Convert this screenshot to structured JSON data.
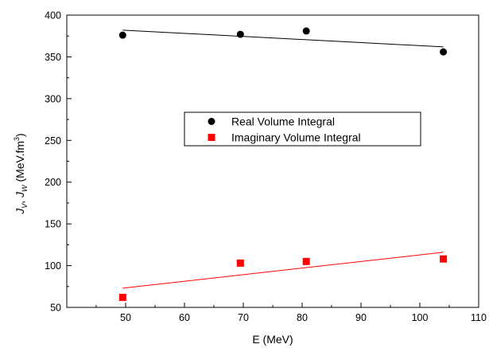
{
  "chart_data": {
    "type": "scatter",
    "xlabel": "E (MeV)",
    "ylabel": {
      "j": "J",
      "v": "V",
      "sep": ", ",
      "w": "W",
      "unit": " (MeV.fm",
      "exp": "3",
      "close": ")"
    },
    "xlim": [
      40,
      110
    ],
    "ylim": [
      50,
      400
    ],
    "xticks": [
      50,
      60,
      70,
      80,
      90,
      100,
      110
    ],
    "yticks": [
      50,
      100,
      150,
      200,
      250,
      300,
      350,
      400
    ],
    "grid": false,
    "legend_position": "center-right",
    "series": [
      {
        "name": "Real Volume Integral",
        "marker": "circle",
        "color": "#000000",
        "x": [
          49.5,
          69.5,
          80.7,
          104.0
        ],
        "y": [
          376,
          377,
          381,
          356
        ],
        "fit": {
          "x": [
            49.5,
            104.0
          ],
          "y": [
            382,
            362
          ]
        }
      },
      {
        "name": "Imaginary Volume Integral",
        "marker": "square",
        "color": "#ff0000",
        "x": [
          49.5,
          69.5,
          80.7,
          104.0
        ],
        "y": [
          62,
          103,
          105,
          108
        ],
        "fit": {
          "x": [
            49.5,
            104.0
          ],
          "y": [
            73,
            116
          ]
        }
      }
    ]
  }
}
